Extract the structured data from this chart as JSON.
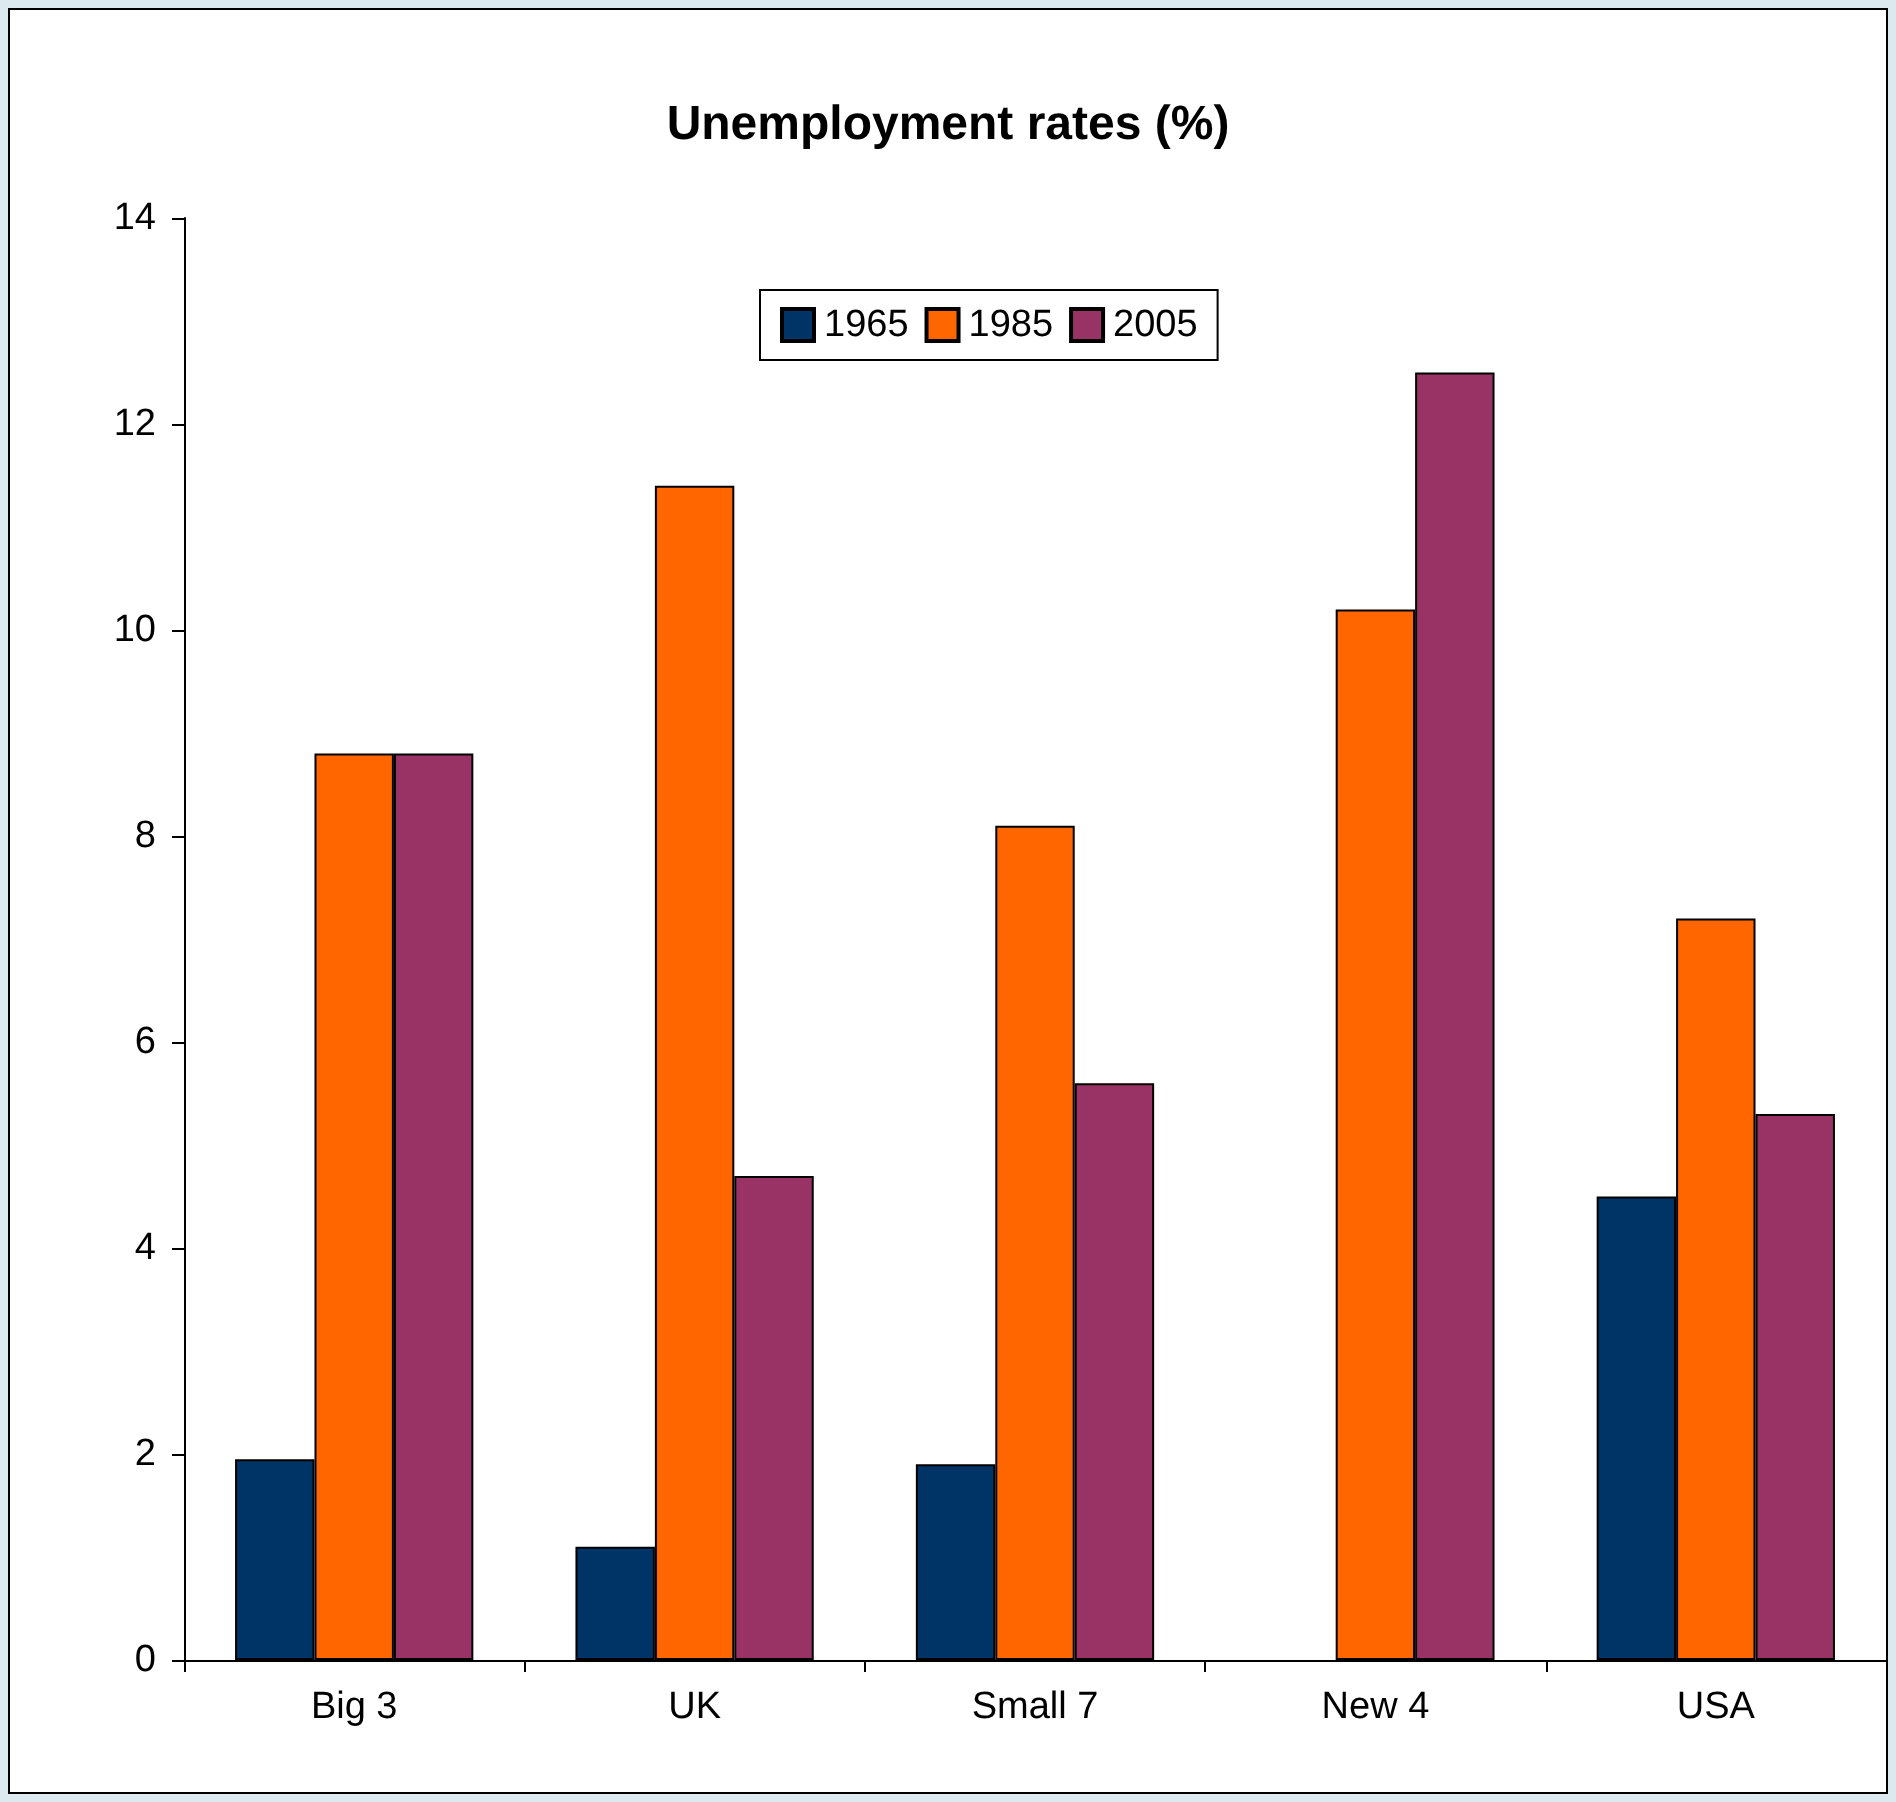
{
  "chart_data": {
    "type": "bar",
    "title": "Unemployment rates (%)",
    "categories": [
      "Big 3",
      "UK",
      "Small 7",
      "New 4",
      "USA"
    ],
    "series": [
      {
        "name": "1965",
        "color": "#003366",
        "values": [
          1.95,
          1.1,
          1.9,
          null,
          4.5
        ]
      },
      {
        "name": "1985",
        "color": "#ff6600",
        "values": [
          8.8,
          11.4,
          8.1,
          10.2,
          7.2
        ]
      },
      {
        "name": "2005",
        "color": "#993366",
        "values": [
          8.8,
          4.7,
          5.6,
          12.5,
          5.3
        ]
      }
    ],
    "ylim": [
      0,
      14
    ],
    "yticks": [
      0,
      2,
      4,
      6,
      8,
      10,
      12,
      14
    ],
    "grid": false,
    "legend": "top"
  }
}
